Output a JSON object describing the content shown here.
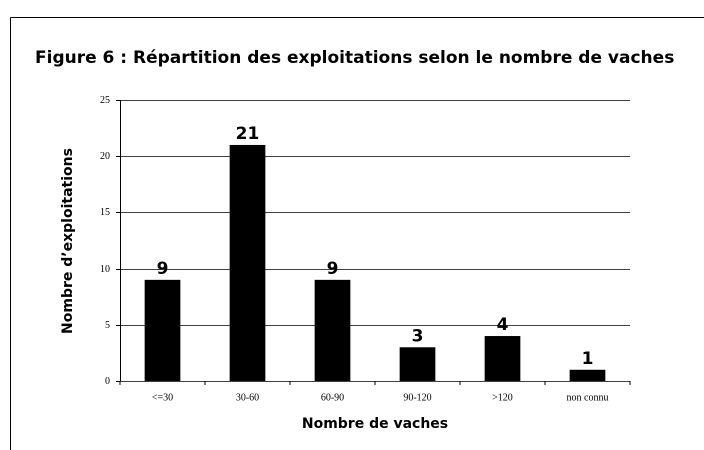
{
  "chart_data": {
    "type": "bar",
    "title": "Figure 6 : Répartition des exploitations selon le nombre de vaches",
    "x_label": "Nombre de vaches",
    "y_label": "Nombre d’exploitations",
    "categories": [
      "<=30",
      "30-60",
      "60-90",
      "90-120",
      ">120",
      "non connu"
    ],
    "values": [
      9,
      21,
      9,
      3,
      4,
      1
    ],
    "color": "#000000",
    "ylim": [
      0,
      25
    ],
    "yticks": [
      0,
      5,
      10,
      15,
      20,
      25
    ],
    "grid": true
  }
}
